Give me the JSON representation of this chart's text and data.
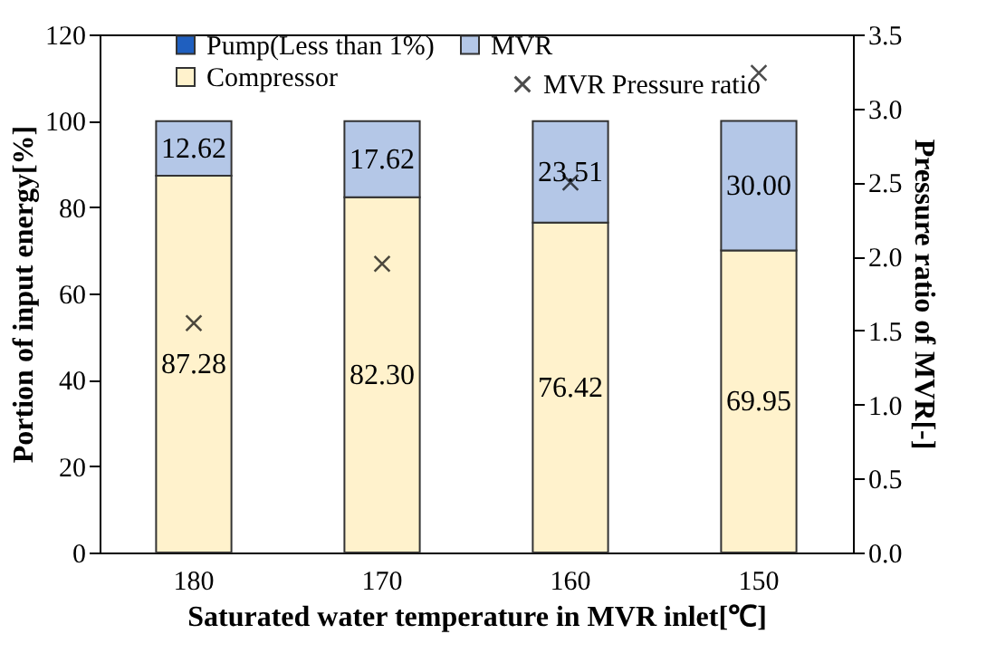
{
  "chart_data": {
    "type": "bar",
    "stacked": true,
    "xlabel": "Saturated water temperature in MVR inlet[℃]",
    "ylabel": "Portion of input energy[%]",
    "y2label": "Pressure ratio of MVR[-]",
    "categories": [
      "180",
      "170",
      "160",
      "150"
    ],
    "series": [
      {
        "name": "Pump(Less than 1%)",
        "color": "#1f5fbf",
        "values": [
          null,
          null,
          null,
          null
        ]
      },
      {
        "name": "Compressor",
        "color": "#fff2cc",
        "values": [
          87.28,
          82.3,
          76.42,
          69.95
        ],
        "value_labels": [
          "87.28",
          "82.30",
          "76.42",
          "69.95"
        ]
      },
      {
        "name": "MVR",
        "color": "#b4c7e7",
        "values": [
          12.62,
          17.62,
          23.51,
          30.0
        ],
        "value_labels": [
          "12.62",
          "17.62",
          "23.51",
          "30.00"
        ]
      },
      {
        "name": "MVR Pressure ratio",
        "type": "scatter",
        "axis": "y2",
        "color": "#000000",
        "marker": "cross",
        "x": [
          "180",
          "170",
          "160",
          "150"
        ],
        "values": [
          1.55,
          1.95,
          2.5,
          3.24
        ]
      }
    ],
    "ylim": [
      0,
      120
    ],
    "yticks": [
      0,
      20,
      40,
      60,
      80,
      100,
      120
    ],
    "y2lim": [
      0,
      3.5
    ],
    "y2ticks": [
      {
        "value": 0,
        "label": "0.0"
      },
      {
        "value": 0.5,
        "label": "0.5"
      },
      {
        "value": 1,
        "label": "1.0"
      },
      {
        "value": 1.5,
        "label": "1.5"
      },
      {
        "value": 2,
        "label": "2.0"
      },
      {
        "value": 2.5,
        "label": "2.5"
      },
      {
        "value": 3,
        "label": "3.0"
      },
      {
        "value": 3.5,
        "label": "3.5"
      }
    ],
    "legend": "top",
    "grid": false
  }
}
